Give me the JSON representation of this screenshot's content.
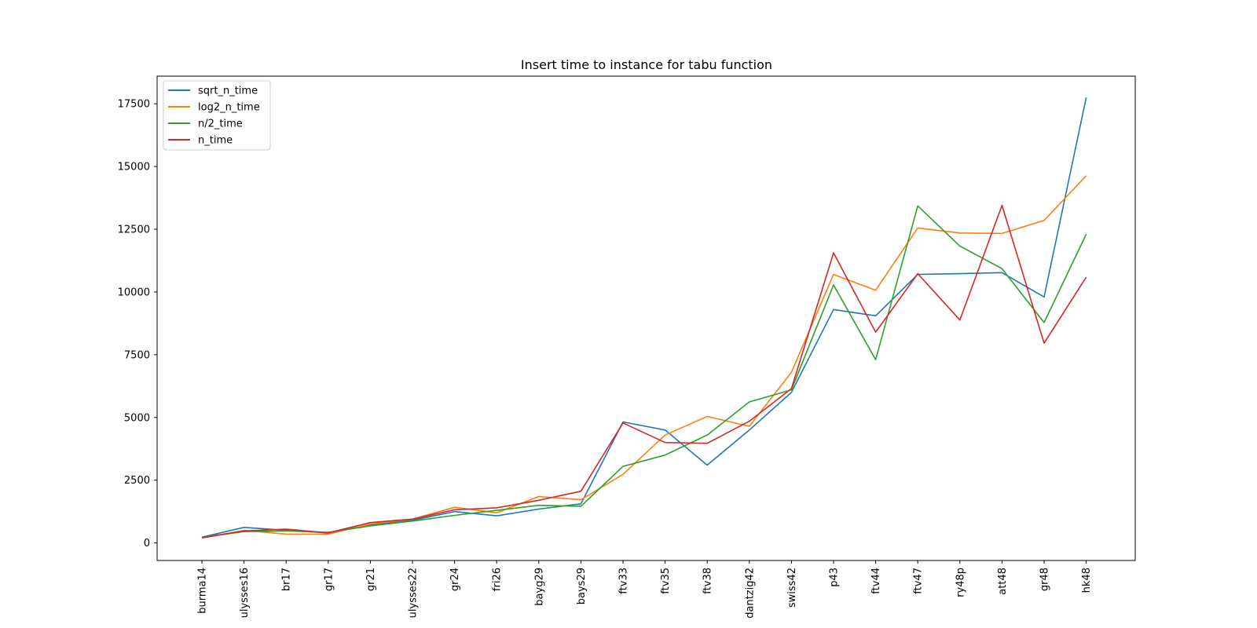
{
  "chart_data": {
    "type": "line",
    "title": "Insert time to instance for tabu function",
    "xlabel": "",
    "ylabel": "",
    "categories": [
      "burma14",
      "ulysses16",
      "br17",
      "gr17",
      "gr21",
      "ulysses22",
      "gr24",
      "fri26",
      "bayg29",
      "bays29",
      "ftv33",
      "ftv35",
      "ftv38",
      "dantzig42",
      "swiss42",
      "p43",
      "ftv44",
      "ftv47",
      "ry48p",
      "att48",
      "gr48",
      "hk48"
    ],
    "ylim": [
      -700,
      18600
    ],
    "yticks": [
      0,
      2500,
      5000,
      7500,
      10000,
      12500,
      15000,
      17500
    ],
    "ytick_labels": [
      "0",
      "2500",
      "5000",
      "7500",
      "10000",
      "12500",
      "15000",
      "17500"
    ],
    "grid": false,
    "legend": "upper-left",
    "series": [
      {
        "name": "sqrt_n_time",
        "color": "#1f77b4",
        "values": [
          230,
          620,
          500,
          400,
          720,
          900,
          1250,
          1080,
          1350,
          1560,
          4820,
          4500,
          3100,
          4500,
          6000,
          9300,
          9050,
          10700,
          10730,
          10770,
          9800,
          17750
        ]
      },
      {
        "name": "log2_n_time",
        "color": "#ff7f0e",
        "values": [
          200,
          500,
          350,
          350,
          750,
          950,
          1420,
          1200,
          1850,
          1720,
          2730,
          4300,
          5040,
          4650,
          6800,
          10700,
          10070,
          12550,
          12350,
          12330,
          12850,
          14630
        ]
      },
      {
        "name": "n/2_time",
        "color": "#2ca02c",
        "values": [
          230,
          450,
          480,
          420,
          680,
          870,
          1100,
          1300,
          1500,
          1460,
          3050,
          3500,
          4300,
          5620,
          6100,
          10280,
          7300,
          13430,
          11830,
          10930,
          8780,
          12300
        ]
      },
      {
        "name": "n_time",
        "color": "#d62728",
        "values": [
          200,
          480,
          550,
          400,
          810,
          950,
          1320,
          1400,
          1700,
          2060,
          4780,
          4000,
          3970,
          4850,
          6150,
          11560,
          8400,
          10730,
          8880,
          13450,
          7960,
          10590
        ]
      }
    ]
  }
}
